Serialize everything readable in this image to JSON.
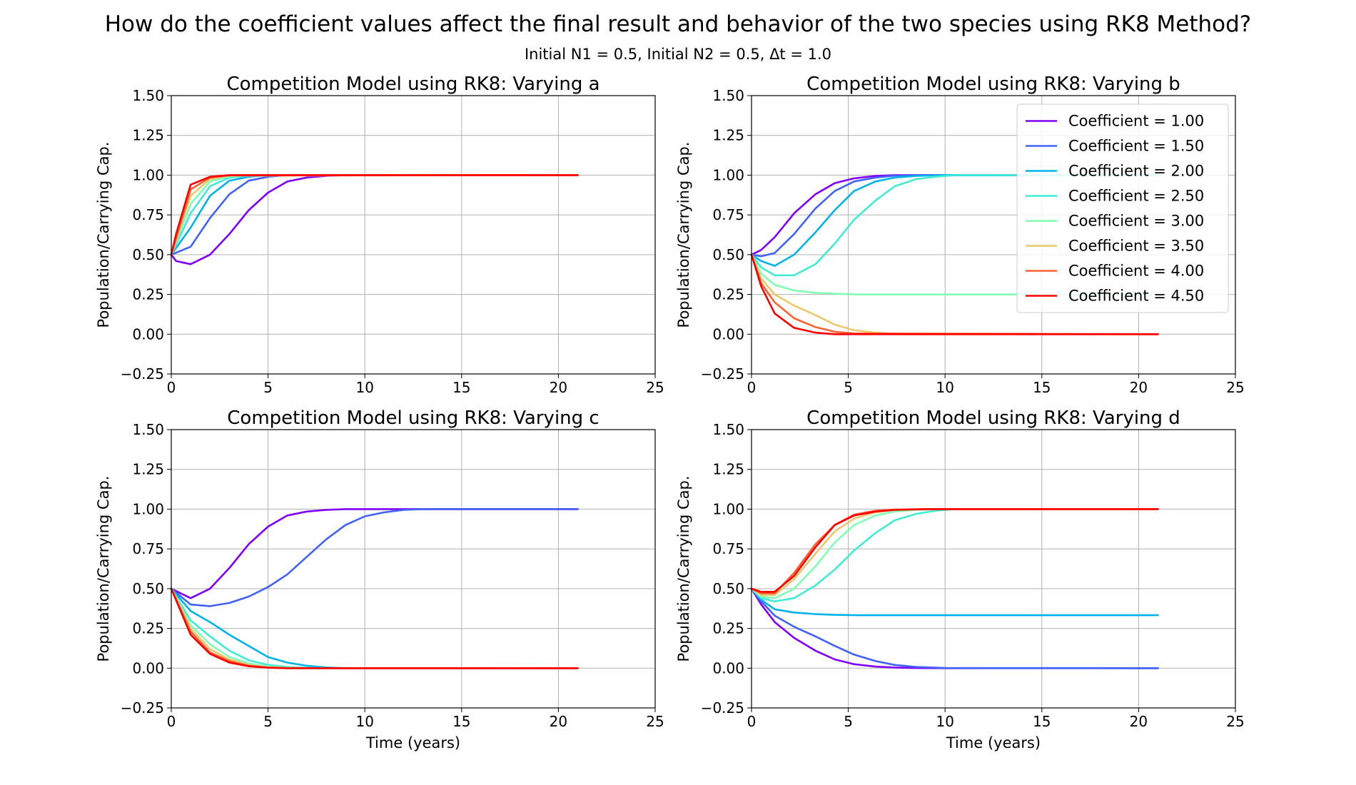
{
  "figure": {
    "title": "How do the coefficient values affect the final result and behavior of the two species using RK8 Method?",
    "subtitle": "Initial N1 = 0.5, Initial N2 = 0.5, Δt = 1.0"
  },
  "legend": {
    "placement": "upper-right of panel 2",
    "entries": [
      {
        "label": "Coefficient = 1.00",
        "color": "#8000ff"
      },
      {
        "label": "Coefficient = 1.50",
        "color": "#4062fa"
      },
      {
        "label": "Coefficient = 2.00",
        "color": "#00b4eb"
      },
      {
        "label": "Coefficient = 2.50",
        "color": "#40ecd4"
      },
      {
        "label": "Coefficient = 3.00",
        "color": "#80ffb4"
      },
      {
        "label": "Coefficient = 3.50",
        "color": "#ecc86c"
      },
      {
        "label": "Coefficient = 4.00",
        "color": "#ff6232"
      },
      {
        "label": "Coefficient = 4.50",
        "color": "#ff0000"
      }
    ]
  },
  "chart_data": [
    {
      "type": "line",
      "title": "Competition Model using RK8: Varying a",
      "xlabel": "",
      "ylabel": "Population/Carrying Cap.",
      "xlim": [
        0,
        25
      ],
      "ylim": [
        -0.25,
        1.5
      ],
      "xticks": [
        "0",
        "5",
        "10",
        "15",
        "20",
        "25"
      ],
      "yticks": [
        "−0.25",
        "0.00",
        "0.25",
        "0.50",
        "0.75",
        "1.00",
        "1.25",
        "1.50"
      ],
      "grid": true,
      "series": [
        {
          "color": "#8000ff",
          "x": [
            0,
            0.25,
            1,
            2,
            3,
            4,
            5,
            6,
            7,
            8,
            9,
            21
          ],
          "y": [
            0.5,
            0.46,
            0.44,
            0.5,
            0.63,
            0.78,
            0.89,
            0.96,
            0.985,
            0.995,
            1.0,
            1.0
          ]
        },
        {
          "color": "#4062fa",
          "x": [
            0,
            1,
            2,
            3,
            4,
            5,
            6,
            21
          ],
          "y": [
            0.5,
            0.55,
            0.73,
            0.88,
            0.965,
            0.99,
            1.0,
            1.0
          ]
        },
        {
          "color": "#00b4eb",
          "x": [
            0,
            1,
            2,
            3,
            4,
            5,
            21
          ],
          "y": [
            0.5,
            0.67,
            0.87,
            0.965,
            0.99,
            1.0,
            1.0
          ]
        },
        {
          "color": "#40ecd4",
          "x": [
            0,
            1,
            2,
            3,
            4,
            21
          ],
          "y": [
            0.5,
            0.76,
            0.93,
            0.985,
            0.998,
            1.0
          ]
        },
        {
          "color": "#80ffb4",
          "x": [
            0,
            1,
            2,
            3,
            4,
            21
          ],
          "y": [
            0.5,
            0.82,
            0.96,
            0.993,
            1.0,
            1.0
          ]
        },
        {
          "color": "#ecc86c",
          "x": [
            0,
            1,
            2,
            3,
            21
          ],
          "y": [
            0.5,
            0.87,
            0.975,
            0.997,
            1.0
          ]
        },
        {
          "color": "#ff6232",
          "x": [
            0,
            1,
            2,
            3,
            21
          ],
          "y": [
            0.5,
            0.91,
            0.985,
            0.999,
            1.0
          ]
        },
        {
          "color": "#ff0000",
          "x": [
            0,
            0.25,
            1,
            2,
            3,
            21
          ],
          "y": [
            0.5,
            0.63,
            0.94,
            0.99,
            1.0,
            1.0
          ]
        }
      ]
    },
    {
      "type": "line",
      "title": "Competition Model using RK8: Varying b",
      "xlabel": "",
      "ylabel": "Population/Carrying Cap.",
      "xlim": [
        0,
        25
      ],
      "ylim": [
        -0.25,
        1.5
      ],
      "xticks": [
        "0",
        "5",
        "10",
        "15",
        "20",
        "25"
      ],
      "yticks": [
        "−0.25",
        "0.00",
        "0.25",
        "0.50",
        "0.75",
        "1.00",
        "1.25",
        "1.50"
      ],
      "grid": true,
      "series": [
        {
          "color": "#8000ff",
          "x": [
            0,
            0.5,
            1.2,
            2.2,
            3.3,
            4.3,
            5.3,
            6.4,
            7.4,
            9,
            21
          ],
          "y": [
            0.5,
            0.53,
            0.61,
            0.76,
            0.88,
            0.95,
            0.98,
            0.995,
            1.0,
            1.0,
            1.0
          ]
        },
        {
          "color": "#4062fa",
          "x": [
            0,
            0.5,
            1.2,
            2.2,
            3.3,
            4.3,
            5.3,
            6.4,
            7.4,
            9,
            21
          ],
          "y": [
            0.5,
            0.49,
            0.51,
            0.63,
            0.79,
            0.9,
            0.96,
            0.985,
            0.997,
            1.0,
            1.0
          ]
        },
        {
          "color": "#00b4eb",
          "x": [
            0,
            0.5,
            1.2,
            2.2,
            3.3,
            4.3,
            5.3,
            6.4,
            7.4,
            8.5,
            10,
            21
          ],
          "y": [
            0.5,
            0.46,
            0.43,
            0.5,
            0.64,
            0.78,
            0.9,
            0.96,
            0.985,
            0.995,
            1.0,
            1.0
          ]
        },
        {
          "color": "#40ecd4",
          "x": [
            0,
            0.5,
            1.2,
            2.2,
            3.3,
            4.3,
            5.3,
            6.4,
            7.4,
            8.5,
            9.5,
            10.5,
            21
          ],
          "y": [
            0.5,
            0.42,
            0.37,
            0.37,
            0.44,
            0.57,
            0.72,
            0.84,
            0.93,
            0.975,
            0.99,
            1.0,
            1.0
          ]
        },
        {
          "color": "#80ffb4",
          "x": [
            0,
            0.5,
            1.2,
            2.2,
            3.3,
            4.3,
            5.5,
            21
          ],
          "y": [
            0.5,
            0.38,
            0.31,
            0.275,
            0.26,
            0.255,
            0.25,
            0.25
          ]
        },
        {
          "color": "#ecc86c",
          "x": [
            0,
            0.5,
            1.2,
            2.2,
            3.3,
            4.3,
            5.3,
            6.4,
            8,
            21
          ],
          "y": [
            0.5,
            0.35,
            0.25,
            0.18,
            0.12,
            0.06,
            0.025,
            0.01,
            0.0,
            0.0
          ]
        },
        {
          "color": "#ff6232",
          "x": [
            0,
            0.5,
            1.2,
            2.2,
            3.3,
            4.3,
            5.3,
            21
          ],
          "y": [
            0.5,
            0.32,
            0.2,
            0.1,
            0.045,
            0.015,
            0.005,
            0.0
          ]
        },
        {
          "color": "#ff0000",
          "x": [
            0,
            0.5,
            1.2,
            2.2,
            3.3,
            4.3,
            21
          ],
          "y": [
            0.5,
            0.3,
            0.13,
            0.04,
            0.01,
            0.0,
            0.0
          ]
        }
      ]
    },
    {
      "type": "line",
      "title": "Competition Model using RK8: Varying c",
      "xlabel": "Time (years)",
      "ylabel": "Population/Carrying Cap.",
      "xlim": [
        0,
        25
      ],
      "ylim": [
        -0.25,
        1.5
      ],
      "xticks": [
        "0",
        "5",
        "10",
        "15",
        "20",
        "25"
      ],
      "yticks": [
        "−0.25",
        "0.00",
        "0.25",
        "0.50",
        "0.75",
        "1.00",
        "1.25",
        "1.50"
      ],
      "grid": true,
      "series": [
        {
          "color": "#8000ff",
          "x": [
            0,
            1,
            2,
            3,
            4,
            5,
            6,
            7,
            8,
            9,
            10,
            21
          ],
          "y": [
            0.5,
            0.44,
            0.5,
            0.63,
            0.78,
            0.89,
            0.96,
            0.985,
            0.995,
            1.0,
            1.0,
            1.0
          ]
        },
        {
          "color": "#4062fa",
          "x": [
            0,
            1,
            2,
            3,
            4,
            5,
            6,
            7,
            8,
            9,
            10,
            11,
            12,
            13,
            21
          ],
          "y": [
            0.5,
            0.4,
            0.39,
            0.41,
            0.45,
            0.51,
            0.59,
            0.7,
            0.81,
            0.9,
            0.955,
            0.98,
            0.995,
            1.0,
            1.0
          ]
        },
        {
          "color": "#00b4eb",
          "x": [
            0,
            1,
            2,
            3,
            4,
            5,
            6,
            7,
            8,
            9,
            21
          ],
          "y": [
            0.5,
            0.36,
            0.29,
            0.21,
            0.14,
            0.07,
            0.035,
            0.015,
            0.005,
            0.0,
            0.0
          ]
        },
        {
          "color": "#40ecd4",
          "x": [
            0,
            1,
            2,
            3,
            4,
            5,
            6,
            7,
            8,
            21
          ],
          "y": [
            0.5,
            0.3,
            0.2,
            0.11,
            0.05,
            0.02,
            0.008,
            0.002,
            0.0,
            0.0
          ]
        },
        {
          "color": "#80ffb4",
          "x": [
            0,
            1,
            2,
            3,
            4,
            5,
            6,
            7,
            21
          ],
          "y": [
            0.5,
            0.27,
            0.15,
            0.07,
            0.03,
            0.01,
            0.003,
            0.0,
            0.0
          ]
        },
        {
          "color": "#ecc86c",
          "x": [
            0,
            1,
            2,
            3,
            4,
            5,
            6,
            21
          ],
          "y": [
            0.5,
            0.25,
            0.12,
            0.055,
            0.02,
            0.006,
            0.001,
            0.0
          ]
        },
        {
          "color": "#ff6232",
          "x": [
            0,
            1,
            2,
            3,
            4,
            5,
            6,
            21
          ],
          "y": [
            0.5,
            0.23,
            0.1,
            0.045,
            0.015,
            0.004,
            0.0,
            0.0
          ]
        },
        {
          "color": "#ff0000",
          "x": [
            0,
            1,
            2,
            3,
            4,
            5,
            6,
            21
          ],
          "y": [
            0.5,
            0.21,
            0.09,
            0.035,
            0.012,
            0.003,
            0.0,
            0.0
          ]
        }
      ]
    },
    {
      "type": "line",
      "title": "Competition Model using RK8: Varying d",
      "xlabel": "Time (years)",
      "ylabel": "Population/Carrying Cap.",
      "xlim": [
        0,
        25
      ],
      "ylim": [
        -0.25,
        1.5
      ],
      "xticks": [
        "0",
        "5",
        "10",
        "15",
        "20",
        "25"
      ],
      "yticks": [
        "−0.25",
        "0.00",
        "0.25",
        "0.50",
        "0.75",
        "1.00",
        "1.25",
        "1.50"
      ],
      "grid": true,
      "series": [
        {
          "color": "#8000ff",
          "x": [
            0,
            0.5,
            1.2,
            2.2,
            3.3,
            4.3,
            5.3,
            6.4,
            7.4,
            8.5,
            10,
            21
          ],
          "y": [
            0.5,
            0.4,
            0.29,
            0.19,
            0.11,
            0.055,
            0.025,
            0.01,
            0.004,
            0.001,
            0.0,
            0.0
          ]
        },
        {
          "color": "#4062fa",
          "x": [
            0,
            0.5,
            1.2,
            2.2,
            3.3,
            4.3,
            5.3,
            6.4,
            7.4,
            8.5,
            10,
            21
          ],
          "y": [
            0.5,
            0.42,
            0.33,
            0.26,
            0.2,
            0.14,
            0.085,
            0.045,
            0.02,
            0.008,
            0.001,
            0.0
          ]
        },
        {
          "color": "#00b4eb",
          "x": [
            0,
            0.5,
            1.2,
            2.2,
            3.3,
            4.3,
            5.5,
            21
          ],
          "y": [
            0.5,
            0.43,
            0.37,
            0.35,
            0.34,
            0.335,
            0.333,
            0.333
          ]
        },
        {
          "color": "#40ecd4",
          "x": [
            0,
            0.5,
            1.2,
            2.2,
            3.3,
            4.3,
            5.3,
            6.4,
            7.4,
            8.5,
            9.5,
            10.5,
            21
          ],
          "y": [
            0.5,
            0.44,
            0.42,
            0.44,
            0.52,
            0.62,
            0.74,
            0.85,
            0.93,
            0.97,
            0.99,
            1.0,
            1.0
          ]
        },
        {
          "color": "#80ffb4",
          "x": [
            0,
            0.5,
            1.2,
            2.2,
            3.3,
            4.3,
            5.3,
            6.4,
            7.4,
            8.5,
            10,
            21
          ],
          "y": [
            0.5,
            0.45,
            0.44,
            0.5,
            0.64,
            0.79,
            0.9,
            0.96,
            0.985,
            0.995,
            1.0,
            1.0
          ]
        },
        {
          "color": "#ecc86c",
          "x": [
            0,
            0.5,
            1.2,
            2.2,
            3.3,
            4.3,
            5.3,
            6.4,
            7.4,
            9,
            21
          ],
          "y": [
            0.5,
            0.46,
            0.46,
            0.56,
            0.72,
            0.86,
            0.94,
            0.98,
            0.995,
            1.0,
            1.0
          ]
        },
        {
          "color": "#ff6232",
          "x": [
            0,
            0.5,
            1.2,
            2.2,
            3.3,
            4.3,
            5.3,
            6.4,
            7.4,
            9,
            21
          ],
          "y": [
            0.5,
            0.47,
            0.47,
            0.6,
            0.78,
            0.9,
            0.965,
            0.99,
            0.997,
            1.0,
            1.0
          ]
        },
        {
          "color": "#ff0000",
          "x": [
            0,
            0.5,
            1.2,
            2.2,
            3.3,
            4.3,
            5.3,
            6.4,
            7.4,
            9,
            21
          ],
          "y": [
            0.5,
            0.48,
            0.48,
            0.58,
            0.76,
            0.9,
            0.96,
            0.985,
            0.995,
            1.0,
            1.0
          ]
        }
      ]
    }
  ]
}
